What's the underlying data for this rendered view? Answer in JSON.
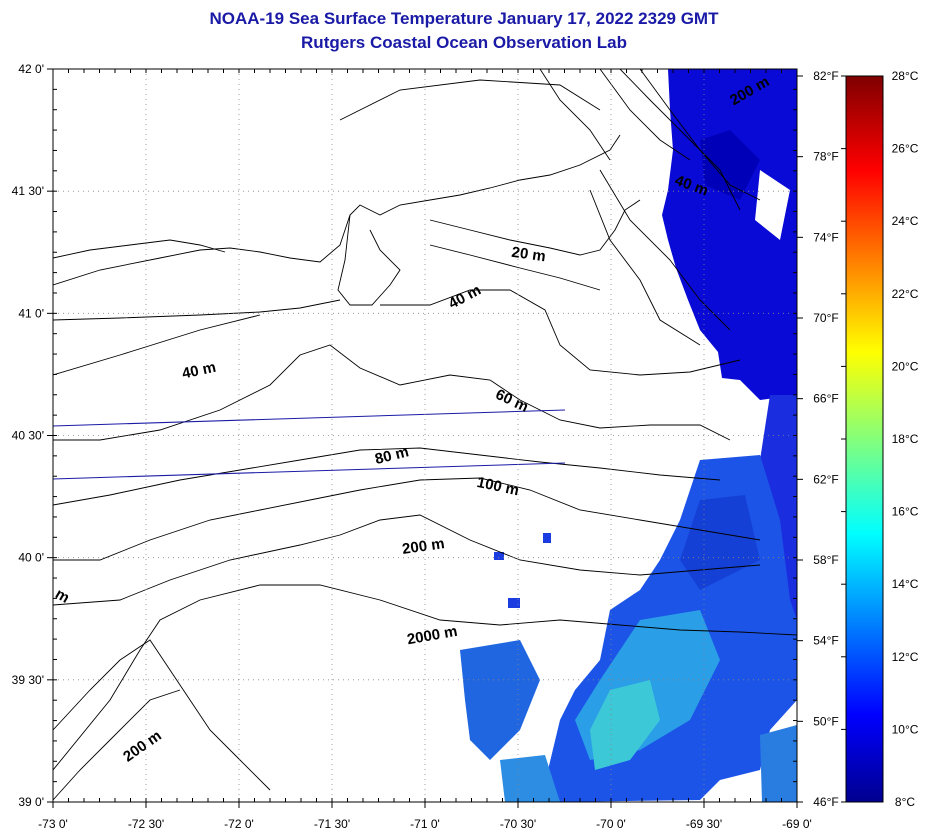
{
  "title": "NOAA-19 Sea Surface Temperature January 17, 2022 2329 GMT",
  "subtitle": "Rutgers Coastal Ocean Observation Lab",
  "map": {
    "lon_range": [
      -73,
      -69
    ],
    "lat_range": [
      39,
      42
    ],
    "lon_tick_labels": [
      "-73 0'",
      "-72 30'",
      "-72 0'",
      "-71 30'",
      "-71 0'",
      "-70 30'",
      "-70 0'",
      "-69 30'",
      "-69 0'"
    ],
    "lat_tick_labels": [
      "42 0'",
      "41 30'",
      "41 0'",
      "40 30'",
      "40 0'",
      "39 30'",
      "39 0'"
    ],
    "grid": "dotted",
    "depth_labels": [
      "20 m",
      "40 m",
      "40 m",
      "60 m",
      "80 m",
      "100 m",
      "200 m",
      "2000 m",
      "200 m",
      "m",
      "200 m",
      "40 m"
    ]
  },
  "colorbar": {
    "celsius_labels": [
      "28°C",
      "26°C",
      "24°C",
      "22°C",
      "20°C",
      "18°C",
      "16°C",
      "14°C",
      "12°C",
      "10°C",
      "8°C"
    ],
    "fahrenheit_labels": [
      "82°F",
      "78°F",
      "74°F",
      "70°F",
      "66°F",
      "62°F",
      "58°F",
      "54°F",
      "50°F",
      "46°F"
    ],
    "celsius_range": [
      8,
      28
    ],
    "fahrenheit_range": [
      46,
      82
    ]
  }
}
